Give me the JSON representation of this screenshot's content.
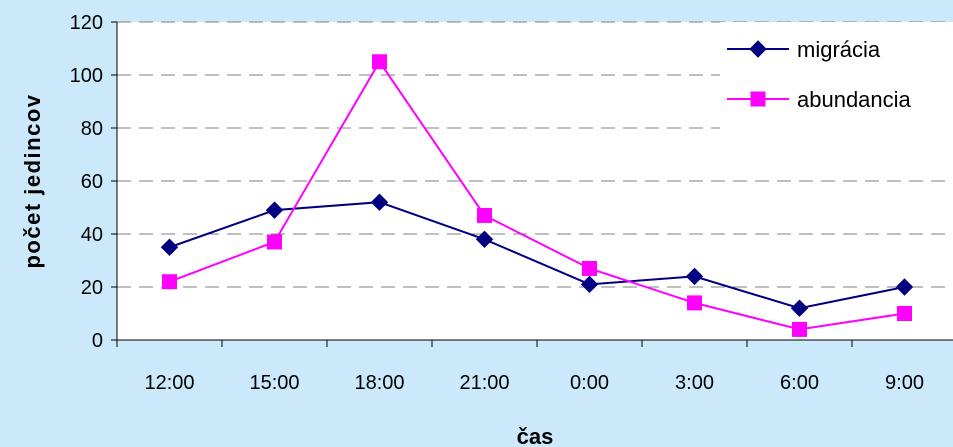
{
  "chart_data": {
    "type": "line",
    "categories": [
      "12:00",
      "15:00",
      "18:00",
      "21:00",
      "0:00",
      "3:00",
      "6:00",
      "9:00"
    ],
    "series": [
      {
        "name": "migrácia",
        "values": [
          35,
          49,
          52,
          38,
          21,
          24,
          12,
          20
        ],
        "color": "#000080",
        "marker": "diamond"
      },
      {
        "name": "abundancia",
        "values": [
          22,
          37,
          105,
          47,
          27,
          14,
          4,
          10
        ],
        "color": "#ff00ff",
        "marker": "square"
      }
    ],
    "title": "",
    "xlabel": "čas",
    "ylabel": "počet jedincov",
    "ylim": [
      0,
      120
    ],
    "yticks": [
      0,
      20,
      40,
      60,
      80,
      100,
      120
    ],
    "grid": true,
    "legend_position": "top-right",
    "plot_background": "#ffffff",
    "page_background": "#cce9fb",
    "gridline_color": "#808080"
  }
}
